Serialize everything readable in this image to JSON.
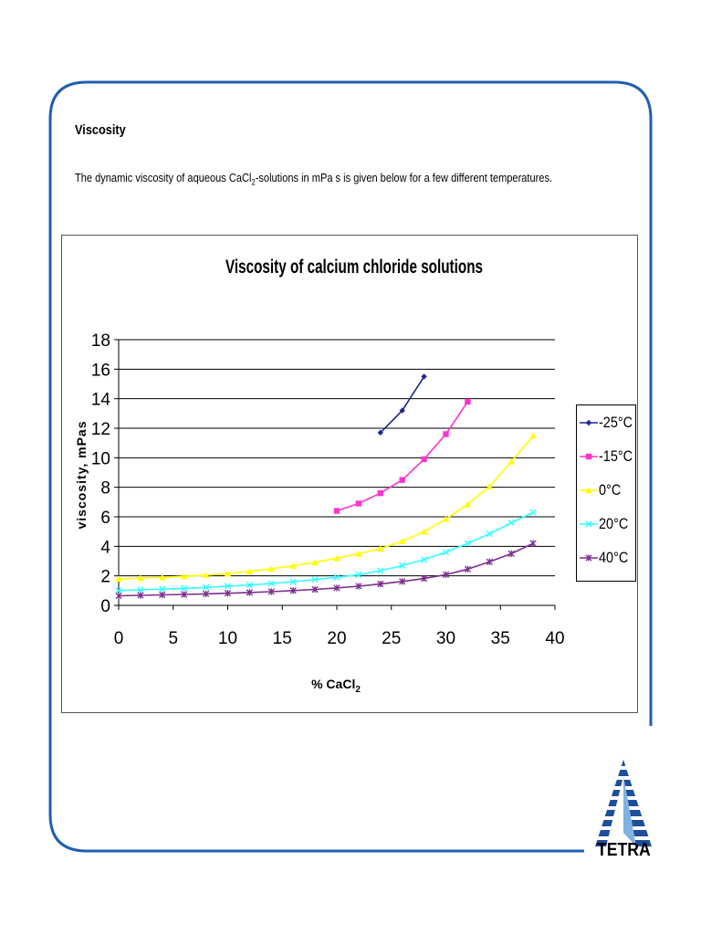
{
  "page": {
    "heading": "Viscosity",
    "intro_before": "The dynamic viscosity of aqueous CaCl",
    "intro_sub": "2",
    "intro_after": "-solutions in mPa s is given below for a few different temperatures."
  },
  "logo": {
    "text": "TETRA",
    "color": "#1f4f9a"
  },
  "chart_data": {
    "type": "line",
    "title": "Viscosity of calcium chloride solutions",
    "xlabel_main": "% CaCl",
    "xlabel_sub": "2",
    "ylabel": "viscosity, mPas",
    "xlim": [
      0,
      40
    ],
    "ylim": [
      0,
      18
    ],
    "xticks": [
      0,
      5,
      10,
      15,
      20,
      25,
      30,
      35,
      40
    ],
    "yticks": [
      0,
      2,
      4,
      6,
      8,
      10,
      12,
      14,
      16,
      18
    ],
    "grid": "horizontal",
    "legend_position": "right",
    "series": [
      {
        "name": "-25°C",
        "color": "#1c2a8a",
        "marker": "diamond",
        "x": [
          24,
          26,
          28
        ],
        "y": [
          11.7,
          13.2,
          15.5
        ]
      },
      {
        "name": "-15°C",
        "color": "#ff33cc",
        "marker": "square",
        "x": [
          20,
          22,
          24,
          26,
          28,
          30,
          32
        ],
        "y": [
          6.4,
          6.9,
          7.6,
          8.5,
          9.9,
          11.6,
          13.8
        ]
      },
      {
        "name": "0°C",
        "color": "#ffff00",
        "marker": "triangle",
        "x": [
          0,
          2,
          4,
          6,
          8,
          10,
          12,
          14,
          16,
          18,
          20,
          22,
          24,
          26,
          28,
          30,
          32,
          34,
          36,
          38
        ],
        "y": [
          1.8,
          1.85,
          1.9,
          1.97,
          2.05,
          2.15,
          2.3,
          2.48,
          2.68,
          2.92,
          3.2,
          3.5,
          3.85,
          4.35,
          5.0,
          5.85,
          6.85,
          8.05,
          9.75,
          11.5
        ]
      },
      {
        "name": "20°C",
        "color": "#33ffff",
        "marker": "x",
        "x": [
          0,
          2,
          4,
          6,
          8,
          10,
          12,
          14,
          16,
          18,
          20,
          22,
          24,
          26,
          28,
          30,
          32,
          34,
          36,
          38
        ],
        "y": [
          1.0,
          1.05,
          1.1,
          1.15,
          1.22,
          1.3,
          1.38,
          1.48,
          1.6,
          1.75,
          1.9,
          2.08,
          2.35,
          2.7,
          3.1,
          3.6,
          4.2,
          4.85,
          5.6,
          6.3
        ]
      },
      {
        "name": "40°C",
        "color": "#7b2f8e",
        "marker": "star",
        "x": [
          0,
          2,
          4,
          6,
          8,
          10,
          12,
          14,
          16,
          18,
          20,
          22,
          24,
          26,
          28,
          30,
          32,
          34,
          36,
          38
        ],
        "y": [
          0.65,
          0.68,
          0.71,
          0.74,
          0.78,
          0.82,
          0.87,
          0.93,
          1.0,
          1.08,
          1.18,
          1.3,
          1.45,
          1.62,
          1.82,
          2.08,
          2.45,
          2.95,
          3.5,
          4.2
        ]
      }
    ]
  }
}
